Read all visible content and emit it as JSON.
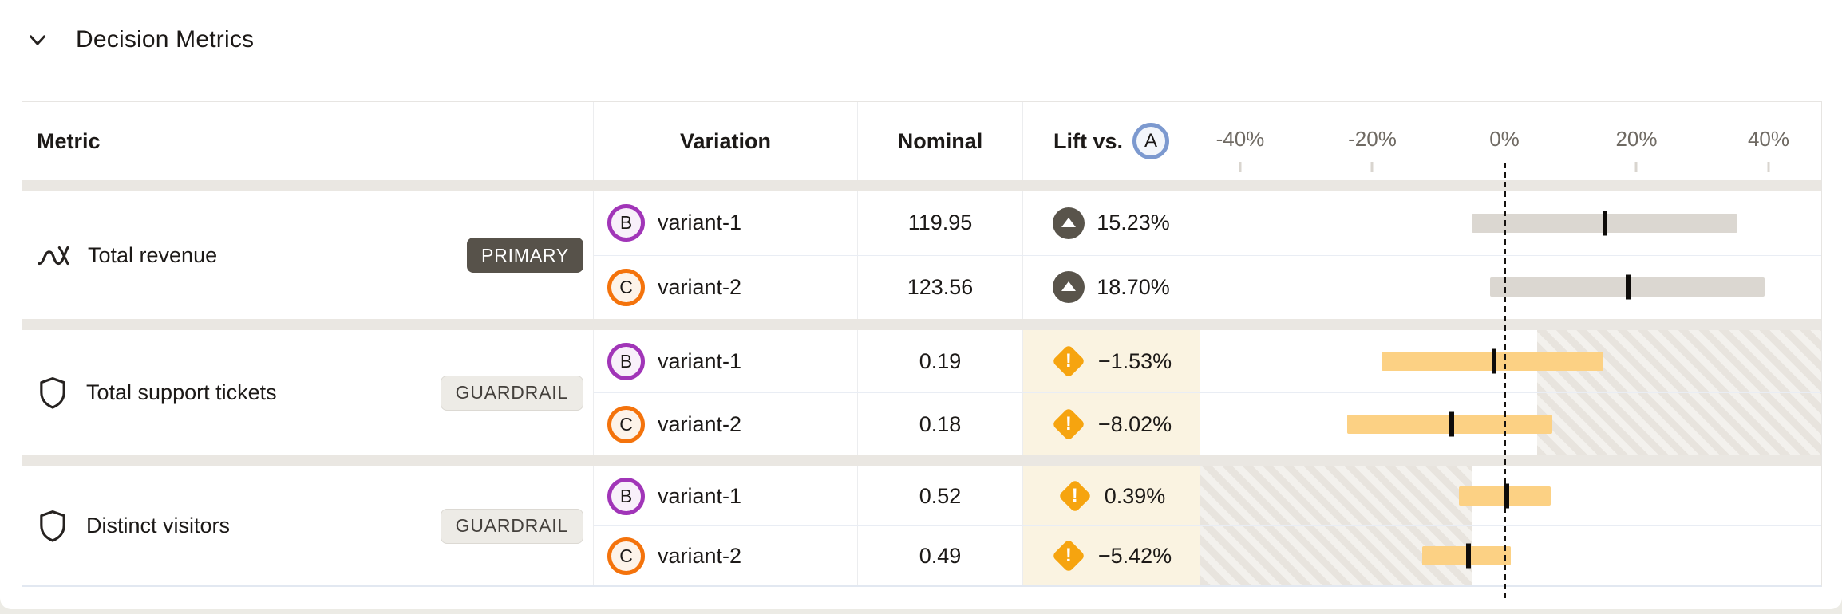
{
  "section": {
    "title": "Decision Metrics"
  },
  "table": {
    "headers": {
      "metric": "Metric",
      "variation": "Variation",
      "nominal": "Nominal",
      "lift_prefix": "Lift vs.",
      "baseline_badge": "A"
    },
    "axis": {
      "tick_labels": [
        "-40%",
        "-20%",
        "0%",
        "20%",
        "40%"
      ],
      "tick_values": [
        -40,
        -20,
        0,
        20,
        40
      ],
      "zero_line_style": "dotted"
    },
    "groups": [
      {
        "metric_label": "Total revenue",
        "metric_icon": "trend-line-icon",
        "tag": "PRIMARY",
        "tag_style": "primary",
        "hatch": null,
        "bar_color": "#dbd7d1",
        "rows": [
          {
            "key": "B",
            "variation": "variant-1",
            "nominal": "119.95",
            "lift_text": "15.23%",
            "lift_value": 15.23,
            "ci_low": -5.0,
            "ci_high": 35.3,
            "status": "up"
          },
          {
            "key": "C",
            "variation": "variant-2",
            "nominal": "123.56",
            "lift_text": "18.70%",
            "lift_value": 18.7,
            "ci_low": -2.2,
            "ci_high": 39.4,
            "status": "up"
          }
        ]
      },
      {
        "metric_label": "Total support tickets",
        "metric_icon": "shield-icon",
        "tag": "GUARDRAIL",
        "tag_style": "guardrail",
        "hatch": {
          "side": "right",
          "from_pct": 5
        },
        "bar_color": "#fcd184",
        "rows": [
          {
            "key": "B",
            "variation": "variant-1",
            "nominal": "0.19",
            "lift_text": "−1.53%",
            "lift_value": -1.53,
            "ci_low": -18.6,
            "ci_high": 15.0,
            "status": "warning"
          },
          {
            "key": "C",
            "variation": "variant-2",
            "nominal": "0.18",
            "lift_text": "−8.02%",
            "lift_value": -8.02,
            "ci_low": -23.8,
            "ci_high": 7.3,
            "status": "warning"
          }
        ]
      },
      {
        "metric_label": "Distinct visitors",
        "metric_icon": "shield-icon",
        "tag": "GUARDRAIL",
        "tag_style": "guardrail",
        "hatch": {
          "side": "left",
          "to_pct": -5
        },
        "bar_color": "#fcd184",
        "rows": [
          {
            "key": "B",
            "variation": "variant-1",
            "nominal": "0.52",
            "lift_text": "0.39%",
            "lift_value": 0.39,
            "ci_low": -6.9,
            "ci_high": 7.0,
            "status": "warning"
          },
          {
            "key": "C",
            "variation": "variant-2",
            "nominal": "0.49",
            "lift_text": "−5.42%",
            "lift_value": -5.42,
            "ci_low": -12.4,
            "ci_high": 1.0,
            "status": "warning"
          }
        ]
      }
    ]
  },
  "chart_data": {
    "type": "bar",
    "subtype": "confidence-interval-forest",
    "title": "Lift vs. A",
    "xlim": [
      -47,
      47
    ],
    "tick_labels": [
      "-40%",
      "-20%",
      "0%",
      "20%",
      "40%"
    ],
    "series": [
      {
        "metric": "Total revenue",
        "variation": "variant-1",
        "lift_pct": 15.23,
        "ci": [
          -5.0,
          35.3
        ]
      },
      {
        "metric": "Total revenue",
        "variation": "variant-2",
        "lift_pct": 18.7,
        "ci": [
          -2.2,
          39.4
        ]
      },
      {
        "metric": "Total support tickets",
        "variation": "variant-1",
        "lift_pct": -1.53,
        "ci": [
          -18.6,
          15.0
        ]
      },
      {
        "metric": "Total support tickets",
        "variation": "variant-2",
        "lift_pct": -8.02,
        "ci": [
          -23.8,
          7.3
        ]
      },
      {
        "metric": "Distinct visitors",
        "variation": "variant-1",
        "lift_pct": 0.39,
        "ci": [
          -6.9,
          7.0
        ]
      },
      {
        "metric": "Distinct visitors",
        "variation": "variant-2",
        "lift_pct": -5.42,
        "ci": [
          -12.4,
          1.0
        ]
      }
    ]
  }
}
